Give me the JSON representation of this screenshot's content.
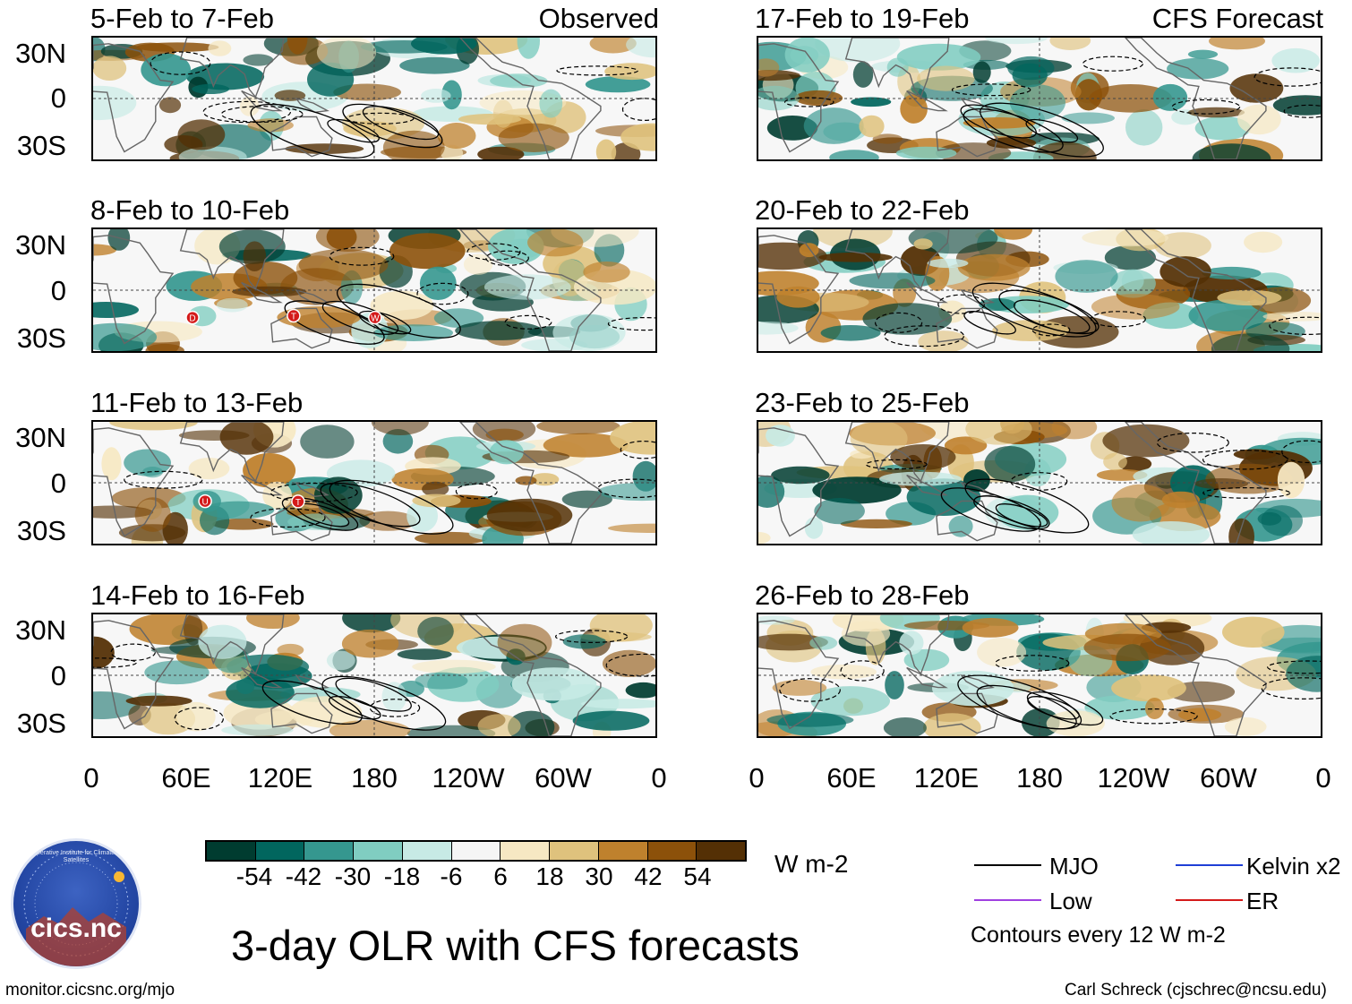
{
  "colors": {
    "ocean_neutral": "#f7f7f7",
    "land_outline": "#666666",
    "contour": "#000000"
  },
  "panels": [
    {
      "title": "5-Feb to 7-Feb",
      "tag": "Observed",
      "column": "left",
      "row": 0
    },
    {
      "title": "8-Feb to 10-Feb",
      "tag": "",
      "column": "left",
      "row": 1,
      "markers": [
        "D",
        "T",
        "W"
      ]
    },
    {
      "title": "11-Feb to 13-Feb",
      "tag": "",
      "column": "left",
      "row": 2,
      "markers": [
        "U",
        "T"
      ]
    },
    {
      "title": "14-Feb to 16-Feb",
      "tag": "",
      "column": "left",
      "row": 3
    },
    {
      "title": "17-Feb to 19-Feb",
      "tag": "CFS Forecast",
      "column": "right",
      "row": 0
    },
    {
      "title": "20-Feb to 22-Feb",
      "tag": "",
      "column": "right",
      "row": 1
    },
    {
      "title": "23-Feb to 25-Feb",
      "tag": "",
      "column": "right",
      "row": 2
    },
    {
      "title": "26-Feb to 28-Feb",
      "tag": "",
      "column": "right",
      "row": 3
    }
  ],
  "lat_labels": [
    "30N",
    "0",
    "30S"
  ],
  "lon_labels": [
    "0",
    "60E",
    "120E",
    "180",
    "120W",
    "60W",
    "0"
  ],
  "colorbar": {
    "colors": [
      "#003c30",
      "#01665e",
      "#35978f",
      "#80cdc1",
      "#c7eae5",
      "#f5f5f5",
      "#f6e8c3",
      "#dfc27d",
      "#bf812d",
      "#8c510a",
      "#543005"
    ],
    "labels": [
      "-54",
      "-42",
      "-30",
      "-18",
      "-6",
      "6",
      "18",
      "30",
      "42",
      "54"
    ],
    "units": "W m-2"
  },
  "legend": {
    "items": [
      {
        "label": "MJO",
        "color": "#000000"
      },
      {
        "label": "Kelvin x2",
        "color": "#1f3fd6"
      },
      {
        "label": "Low",
        "color": "#a040e0"
      },
      {
        "label": "ER",
        "color": "#d41a1a"
      }
    ],
    "note": "Contours every 12 W m-2"
  },
  "main_title": "3-day OLR with CFS forecasts",
  "footer_left": "monitor.cicsnc.org/mjo",
  "footer_right": "Carl Schreck (cjschrec@ncsu.edu)",
  "logo": {
    "text": "cics.nc",
    "ring_text": "Cooperative Institute for Climate and Satellites"
  }
}
